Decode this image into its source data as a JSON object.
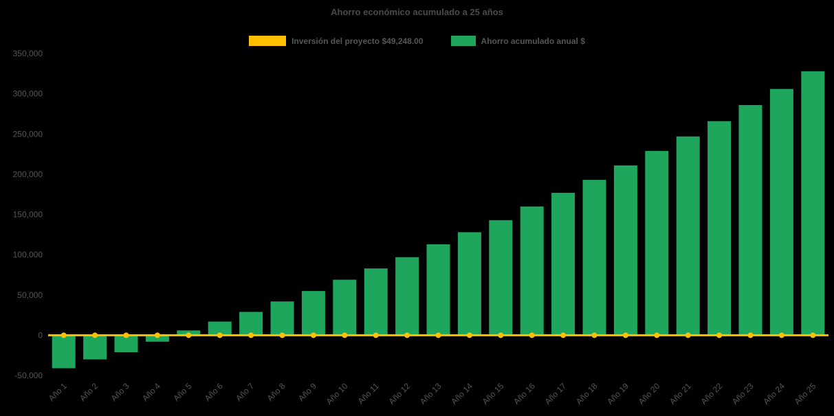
{
  "title": "Ahorro económico acumulado a 25 años",
  "colors": {
    "background": "#000000",
    "bar": "#1EA65C",
    "line": "#FFC000",
    "text": "#555555",
    "title_text": "#4a4a4a"
  },
  "legend": {
    "items": [
      {
        "label": "Inversión del proyecto $49,248.00",
        "swatch": "line",
        "color": "#FFC000"
      },
      {
        "label": "Ahorro acumulado anual $",
        "swatch": "bar",
        "color": "#1EA65C"
      }
    ]
  },
  "chart_data": {
    "type": "bar",
    "title": "Ahorro económico acumulado a 25 años",
    "xlabel": "",
    "ylabel": "",
    "categories": [
      "Año 1",
      "Año 2",
      "Año 3",
      "Año 4",
      "Año 5",
      "Año 6",
      "Año 7",
      "Año 8",
      "Año 9",
      "Año 10",
      "Año 11",
      "Año 12",
      "Año 13",
      "Año 14",
      "Año 15",
      "Año 16",
      "Año 17",
      "Año 18",
      "Año 19",
      "Año 20",
      "Año 21",
      "Año 22",
      "Año 23",
      "Año 24",
      "Año 25"
    ],
    "series": [
      {
        "name": "Ahorro acumulado anual $",
        "type": "bar",
        "color": "#1EA65C",
        "values": [
          -41000,
          -30000,
          -21000,
          -8000,
          6000,
          17000,
          29000,
          42000,
          55000,
          69000,
          83000,
          97000,
          113000,
          128000,
          143000,
          160000,
          177000,
          193000,
          211000,
          229000,
          247000,
          266000,
          286000,
          306000,
          328000
        ]
      },
      {
        "name": "Inversión del proyecto $49,248.00",
        "type": "line",
        "color": "#FFC000",
        "values": [
          0,
          0,
          0,
          0,
          0,
          0,
          0,
          0,
          0,
          0,
          0,
          0,
          0,
          0,
          0,
          0,
          0,
          0,
          0,
          0,
          0,
          0,
          0,
          0,
          0
        ]
      }
    ],
    "ylim": [
      -50000,
      350000
    ],
    "ytick_step": 50000,
    "ytick_labels": [
      "-50,000",
      "0",
      "50,000",
      "100,000",
      "150,000",
      "200,000",
      "250,000",
      "300,000",
      "350,000"
    ],
    "grid": false,
    "legend_position": "top-center",
    "x_tick_rotation": -45
  }
}
